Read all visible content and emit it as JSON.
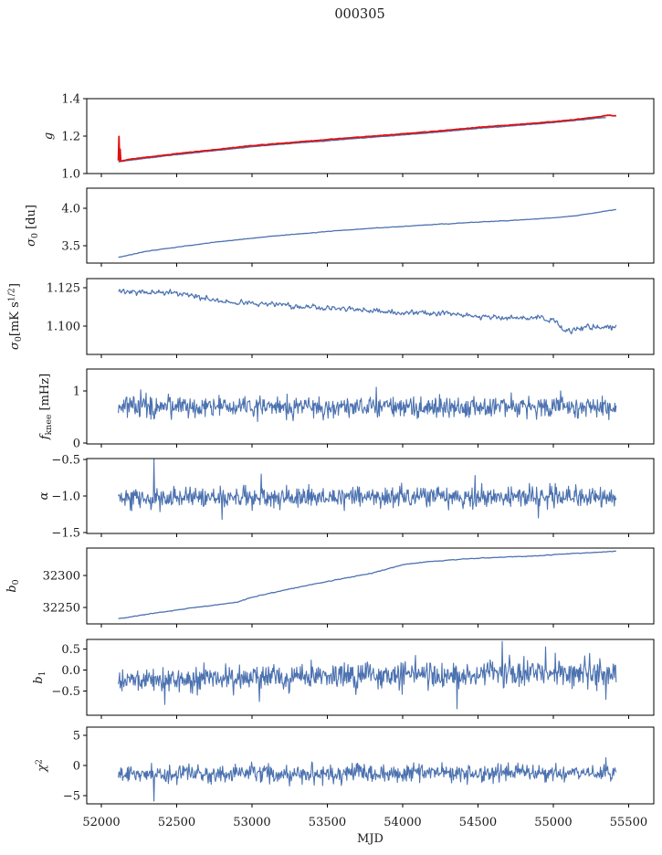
{
  "title": "000305",
  "colors": {
    "blue": "#4c72b0",
    "red": "#e01010",
    "axis": "#000000",
    "text": "#1a1a1a"
  },
  "chart_data": {
    "type": "line",
    "title": "000305",
    "xlabel": "MJD",
    "xlim": [
      51903,
      55667
    ],
    "x_ticks": [
      52000,
      52500,
      53000,
      53500,
      54000,
      54500,
      55000,
      55500
    ],
    "x_tick_labels": [
      "52000",
      "52500",
      "53000",
      "53500",
      "54000",
      "54500",
      "55000",
      "55500"
    ],
    "x_data_range": [
      52113,
      55420
    ],
    "seed": 20131,
    "panels": [
      {
        "id": "g",
        "ylabel_text": "g",
        "ylabel_parts": [
          [
            "g",
            "it"
          ]
        ],
        "ylim": [
          1.0,
          1.4
        ],
        "yticks": [
          1.0,
          1.2,
          1.4
        ],
        "ytick_labels": [
          "1.0",
          "1.2",
          "1.4"
        ],
        "series": [
          {
            "name": "gain-data",
            "color": "#4c72b0",
            "width": 1.3,
            "noise": 0.0012,
            "smooth": 2,
            "x0": 52113,
            "x1": 55350,
            "trend": [
              [
                52113,
                1.063
              ],
              [
                52300,
                1.082
              ],
              [
                52500,
                1.1
              ],
              [
                52750,
                1.122
              ],
              [
                53000,
                1.143
              ],
              [
                53250,
                1.16
              ],
              [
                53500,
                1.175
              ],
              [
                53750,
                1.191
              ],
              [
                54000,
                1.206
              ],
              [
                54250,
                1.222
              ],
              [
                54500,
                1.241
              ],
              [
                54750,
                1.256
              ],
              [
                55000,
                1.272
              ],
              [
                55150,
                1.284
              ],
              [
                55300,
                1.296
              ],
              [
                55350,
                1.299
              ]
            ],
            "spikes": []
          },
          {
            "name": "gain-model",
            "color": "#e01010",
            "width": 1.8,
            "noise": 0.0012,
            "smooth": 2,
            "x0": 52113,
            "x1": 55420,
            "trend": [
              [
                52113,
                1.072
              ],
              [
                52125,
                1.066
              ],
              [
                52200,
                1.078
              ],
              [
                52350,
                1.092
              ],
              [
                52500,
                1.106
              ],
              [
                52750,
                1.127
              ],
              [
                53000,
                1.149
              ],
              [
                53250,
                1.165
              ],
              [
                53500,
                1.181
              ],
              [
                53750,
                1.197
              ],
              [
                54000,
                1.212
              ],
              [
                54250,
                1.228
              ],
              [
                54500,
                1.247
              ],
              [
                54750,
                1.261
              ],
              [
                55000,
                1.277
              ],
              [
                55150,
                1.289
              ],
              [
                55300,
                1.303
              ],
              [
                55360,
                1.312
              ],
              [
                55420,
                1.307
              ]
            ],
            "spikes": [
              [
                52118,
                1.198
              ],
              [
                52123,
                1.13
              ]
            ]
          }
        ]
      },
      {
        "id": "sigma0-du",
        "ylabel_text": "σ0 [du]",
        "ylabel_parts": [
          [
            "σ",
            "it"
          ],
          [
            "0",
            "sub"
          ],
          [
            " [du]",
            ""
          ]
        ],
        "ylim": [
          3.268,
          4.268
        ],
        "yticks": [
          3.5,
          4.0
        ],
        "ytick_labels": [
          "3.5",
          "4.0"
        ],
        "series": [
          {
            "name": "sigma0-du",
            "color": "#4c72b0",
            "width": 1.3,
            "noise": 0.003,
            "smooth": 2,
            "x0": 52113,
            "x1": 55420,
            "trend": [
              [
                52113,
                3.345
              ],
              [
                52300,
                3.425
              ],
              [
                52500,
                3.48
              ],
              [
                52750,
                3.545
              ],
              [
                53000,
                3.6
              ],
              [
                53250,
                3.648
              ],
              [
                53500,
                3.69
              ],
              [
                53750,
                3.726
              ],
              [
                54000,
                3.758
              ],
              [
                54250,
                3.787
              ],
              [
                54500,
                3.815
              ],
              [
                54750,
                3.84
              ],
              [
                55000,
                3.872
              ],
              [
                55150,
                3.9
              ],
              [
                55300,
                3.945
              ],
              [
                55420,
                3.985
              ]
            ],
            "spikes": []
          }
        ]
      },
      {
        "id": "sigma0-mK",
        "ylabel_text": "σ0[mK s1/2]",
        "ylabel_parts": [
          [
            "σ",
            "it"
          ],
          [
            "0",
            "sub"
          ],
          [
            "[mK s",
            ""
          ],
          [
            "1/2",
            "sup"
          ],
          [
            "]",
            ""
          ]
        ],
        "ylim": [
          1.0816,
          1.131
        ],
        "yticks": [
          1.1,
          1.125
        ],
        "ytick_labels": [
          "1.100",
          "1.125"
        ],
        "series": [
          {
            "name": "sigma0-mK",
            "color": "#4c72b0",
            "width": 1.2,
            "noise": 0.0013,
            "smooth": 1,
            "x0": 52113,
            "x1": 55420,
            "trend": [
              [
                52113,
                1.1235
              ],
              [
                52250,
                1.1218
              ],
              [
                52450,
                1.122
              ],
              [
                52600,
                1.12
              ],
              [
                52800,
                1.116
              ],
              [
                53000,
                1.1148
              ],
              [
                53150,
                1.1145
              ],
              [
                53300,
                1.1128
              ],
              [
                53500,
                1.1122
              ],
              [
                53700,
                1.1105
              ],
              [
                53900,
                1.109
              ],
              [
                54100,
                1.1085
              ],
              [
                54300,
                1.1082
              ],
              [
                54500,
                1.1062
              ],
              [
                54700,
                1.1058
              ],
              [
                54900,
                1.1052
              ],
              [
                55000,
                1.104
              ],
              [
                55020,
                1.102
              ],
              [
                55080,
                1.0965
              ],
              [
                55160,
                1.0978
              ],
              [
                55250,
                1.099
              ],
              [
                55350,
                1.0992
              ],
              [
                55420,
                1.0998
              ]
            ],
            "spikes": []
          }
        ]
      },
      {
        "id": "fknee",
        "ylabel_text": "fknee [mHz]",
        "ylabel_parts": [
          [
            "f",
            "it"
          ],
          [
            "knee",
            "sub"
          ],
          [
            " [mHz]",
            ""
          ]
        ],
        "ylim": [
          -0.02,
          1.42
        ],
        "yticks": [
          0,
          1
        ],
        "ytick_labels": [
          "0",
          "1"
        ],
        "series": [
          {
            "name": "fknee",
            "color": "#4c72b0",
            "width": 1.1,
            "noise": 0.1,
            "smooth": 0,
            "x0": 52113,
            "x1": 55420,
            "trend": [
              [
                52113,
                0.7
              ],
              [
                53000,
                0.68
              ],
              [
                54000,
                0.7
              ],
              [
                55420,
                0.69
              ]
            ],
            "spikes": [
              [
                52260,
                1.02
              ],
              [
                53824,
                1.07
              ],
              [
                55050,
                1.0
              ]
            ]
          }
        ]
      },
      {
        "id": "alpha",
        "ylabel_text": "α",
        "ylabel_parts": [
          [
            "α",
            "it"
          ]
        ],
        "ylim": [
          -1.5125,
          -0.4875
        ],
        "yticks": [
          -0.5,
          -1.0,
          -1.5
        ],
        "ytick_labels": [
          "−0.5",
          "−1.0",
          "−1.5"
        ],
        "series": [
          {
            "name": "alpha",
            "color": "#4c72b0",
            "width": 1.1,
            "noise": 0.07,
            "smooth": 0,
            "x0": 52113,
            "x1": 55420,
            "trend": [
              [
                52113,
                -1.03
              ],
              [
                53500,
                -1.01
              ],
              [
                55420,
                -1.02
              ]
            ],
            "spikes": [
              [
                52350,
                -0.49
              ],
              [
                52800,
                -1.32
              ],
              [
                53060,
                -0.7
              ],
              [
                54480,
                -0.72
              ],
              [
                54900,
                -1.3
              ]
            ]
          }
        ]
      },
      {
        "id": "b0",
        "ylabel_text": "b0",
        "ylabel_parts": [
          [
            "b",
            "it"
          ],
          [
            "0",
            "sub"
          ]
        ],
        "ylim": [
          32224,
          32343
        ],
        "yticks": [
          32250,
          32300
        ],
        "ytick_labels": [
          "32250",
          "32300"
        ],
        "series": [
          {
            "name": "b0",
            "color": "#4c72b0",
            "width": 1.3,
            "noise": 0.5,
            "smooth": 2,
            "x0": 52113,
            "x1": 55420,
            "trend": [
              [
                52113,
                32232
              ],
              [
                52300,
                32239
              ],
              [
                52500,
                32246
              ],
              [
                52700,
                32252
              ],
              [
                52900,
                32258
              ],
              [
                53000,
                32266
              ],
              [
                53200,
                32276
              ],
              [
                53400,
                32286
              ],
              [
                53600,
                32295
              ],
              [
                53800,
                32304
              ],
              [
                54000,
                32317
              ],
              [
                54150,
                32321
              ],
              [
                54300,
                32324
              ],
              [
                54500,
                32327
              ],
              [
                54700,
                32329
              ],
              [
                54900,
                32331
              ],
              [
                55100,
                32334
              ],
              [
                55250,
                32336
              ],
              [
                55420,
                32338
              ]
            ],
            "spikes": []
          }
        ]
      },
      {
        "id": "b1",
        "ylabel_text": "b1",
        "ylabel_parts": [
          [
            "b",
            "it"
          ],
          [
            "1",
            "sub"
          ]
        ],
        "ylim": [
          -1.076,
          0.728
        ],
        "yticks": [
          0.5,
          0.0,
          -0.5
        ],
        "ytick_labels": [
          "0.5",
          "0.0",
          "−0.5"
        ],
        "series": [
          {
            "name": "b1",
            "color": "#4c72b0",
            "width": 1.1,
            "noise": 0.13,
            "noise_end": 0.2,
            "smooth": 0,
            "x0": 52113,
            "x1": 55420,
            "trend": [
              [
                52113,
                -0.26
              ],
              [
                52600,
                -0.22
              ],
              [
                53200,
                -0.18
              ],
              [
                54000,
                -0.12
              ],
              [
                54800,
                -0.08
              ],
              [
                55420,
                -0.05
              ]
            ],
            "spikes": [
              [
                52420,
                -0.82
              ],
              [
                53050,
                -0.75
              ],
              [
                54360,
                -0.92
              ],
              [
                54660,
                0.68
              ],
              [
                54950,
                0.55
              ],
              [
                55350,
                -0.7
              ]
            ]
          }
        ]
      },
      {
        "id": "chi2",
        "ylabel_text": "χ2",
        "ylabel_parts": [
          [
            "χ",
            "it"
          ],
          [
            "2",
            "sup"
          ]
        ],
        "ylim": [
          -6.36,
          6.36
        ],
        "yticks": [
          5,
          0,
          -5
        ],
        "ytick_labels": [
          "5",
          "0",
          "−5"
        ],
        "series": [
          {
            "name": "chi2",
            "color": "#4c72b0",
            "width": 1.1,
            "noise": 0.75,
            "smooth": 0,
            "x0": 52113,
            "x1": 55420,
            "trend": [
              [
                52113,
                -1.45
              ],
              [
                53000,
                -1.35
              ],
              [
                54000,
                -1.25
              ],
              [
                55420,
                -1.15
              ]
            ],
            "spikes": [
              [
                52350,
                -5.9
              ],
              [
                52500,
                -3.2
              ],
              [
                53250,
                -3.4
              ],
              [
                54600,
                -3.0
              ],
              [
                55350,
                1.3
              ]
            ]
          }
        ]
      }
    ]
  }
}
